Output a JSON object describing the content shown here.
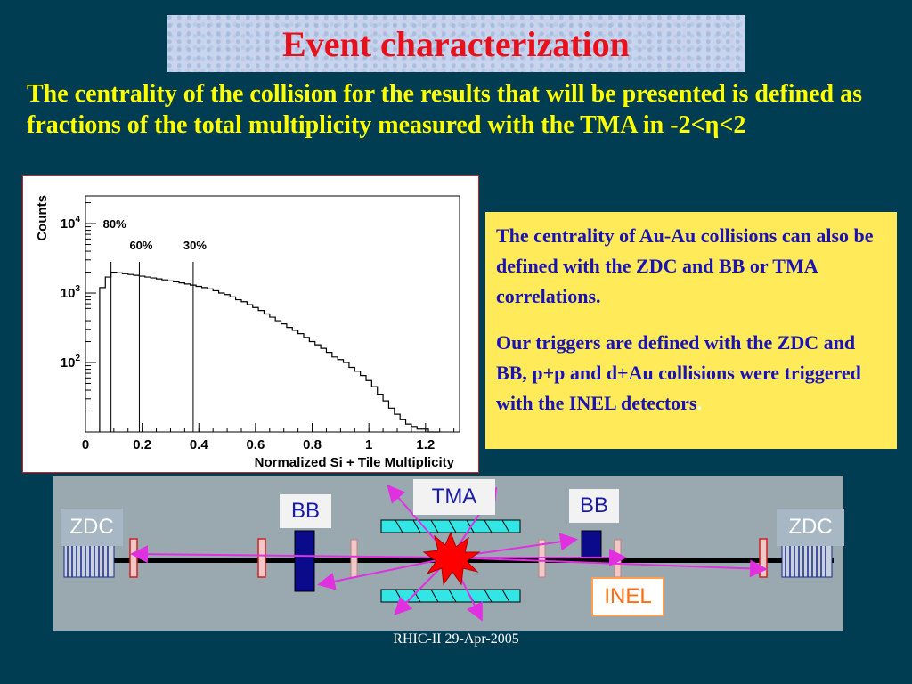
{
  "title": "Event characterization",
  "intro": "The centrality of the collision for the results that will be presented is defined as fractions of the total multiplicity measured with the TMA in -2<η<2",
  "note": {
    "para1": "The centrality of Au-Au collisions can also be defined with the ZDC and BB or TMA correlations.",
    "para2": "Our triggers are defined with the ZDC and BB, p+p and d+Au collisions were triggered with the INEL detectors",
    "para2_end": "."
  },
  "chart_data": {
    "type": "histogram",
    "xlabel": "Normalized Si + Tile Multiplicity",
    "ylabel": "Counts",
    "yscale": "log",
    "xlim": [
      0,
      1.32
    ],
    "ylim": [
      10,
      25000
    ],
    "x_ticks": [
      "0",
      "0.2",
      "0.4",
      "0.6",
      "0.8",
      "1",
      "1.2"
    ],
    "y_ticks": [
      {
        "base": "10",
        "exp": "4"
      },
      {
        "base": "10",
        "exp": "3"
      },
      {
        "base": "10",
        "exp": "2"
      }
    ],
    "centrality_cuts": [
      {
        "label": "80%",
        "x": 0.09
      },
      {
        "label": "60%",
        "x": 0.19
      },
      {
        "label": "30%",
        "x": 0.38
      }
    ],
    "x": [
      0.06,
      0.08,
      0.1,
      0.12,
      0.14,
      0.16,
      0.18,
      0.2,
      0.22,
      0.24,
      0.26,
      0.28,
      0.3,
      0.32,
      0.34,
      0.36,
      0.38,
      0.4,
      0.42,
      0.44,
      0.46,
      0.48,
      0.5,
      0.52,
      0.54,
      0.56,
      0.58,
      0.6,
      0.62,
      0.64,
      0.66,
      0.68,
      0.7,
      0.72,
      0.74,
      0.76,
      0.78,
      0.8,
      0.82,
      0.84,
      0.86,
      0.88,
      0.9,
      0.92,
      0.94,
      0.96,
      0.98,
      1.0,
      1.02,
      1.04,
      1.06,
      1.08,
      1.1,
      1.12,
      1.14,
      1.16,
      1.18,
      1.2,
      1.22,
      1.24
    ],
    "counts": [
      1200,
      1700,
      2000,
      1950,
      1900,
      1850,
      1800,
      1750,
      1700,
      1650,
      1600,
      1550,
      1500,
      1450,
      1400,
      1350,
      1300,
      1250,
      1200,
      1150,
      1080,
      1000,
      950,
      880,
      800,
      750,
      680,
      620,
      560,
      500,
      450,
      400,
      360,
      320,
      290,
      260,
      230,
      200,
      180,
      160,
      140,
      120,
      110,
      100,
      85,
      75,
      65,
      55,
      45,
      35,
      28,
      22,
      18,
      15,
      13,
      12,
      11,
      11,
      10,
      10
    ]
  },
  "diagram": {
    "zdc_left": "ZDC",
    "zdc_right": "ZDC",
    "bb_left": "BB",
    "bb_right": "BB",
    "tma": "TMA",
    "inel": "INEL"
  },
  "footer": "RHIC-II 29-Apr-2005",
  "colors": {
    "background": "#003c52",
    "title": "#e8101a",
    "intro_text": "#ffff00",
    "note_bg": "#ffeb5a",
    "note_text": "#1a12b4",
    "tma_bar": "#33e6e6",
    "bb_block": "#0a0a8a",
    "track": "#e030e0",
    "collision": "#ff0000"
  }
}
